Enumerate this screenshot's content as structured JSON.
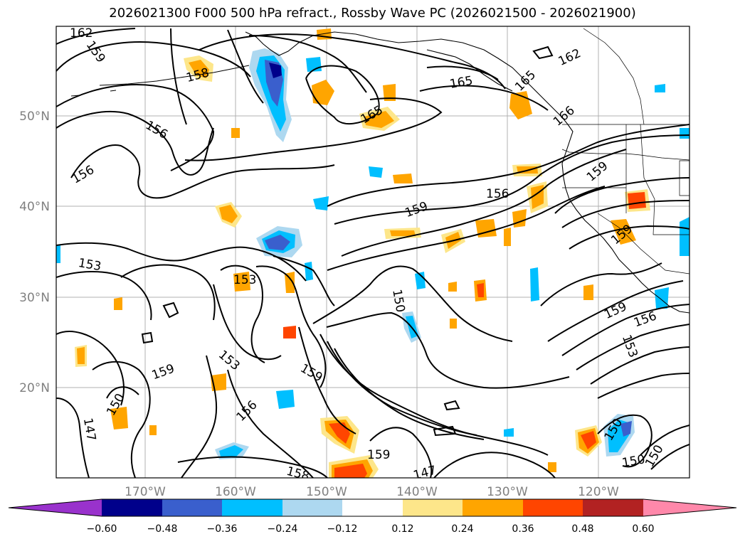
{
  "title": "2026021300 F000 500 hPa refract., Rossby Wave PC (2026021500 - 2026021900)",
  "map": {
    "lat_labels": [
      "50°N",
      "40°N",
      "30°N",
      "20°N"
    ],
    "lon_labels": [
      "170°W",
      "160°W",
      "150°W",
      "140°W",
      "130°W",
      "120°W"
    ],
    "contour_labels": [
      "162",
      "159",
      "158",
      "156",
      "156",
      "165",
      "165",
      "165",
      "162",
      "166",
      "159",
      "156",
      "159",
      "153",
      "153",
      "150",
      "159",
      "159",
      "153",
      "156",
      "150",
      "147",
      "158",
      "159",
      "147",
      "150",
      "150",
      "150",
      "156",
      "159",
      "153",
      "159"
    ]
  },
  "colorbar": {
    "ticks": [
      "−0.60",
      "−0.48",
      "−0.36",
      "−0.24",
      "−0.12",
      "0.12",
      "0.24",
      "0.36",
      "0.48",
      "0.60"
    ],
    "colors": [
      "#9932cc",
      "#00008b",
      "#3a5fcd",
      "#00bfff",
      "#add8f0",
      "#ffffff",
      "#fde68a",
      "#ffa500",
      "#ff4500",
      "#b22222",
      "#ff88aa"
    ]
  }
}
